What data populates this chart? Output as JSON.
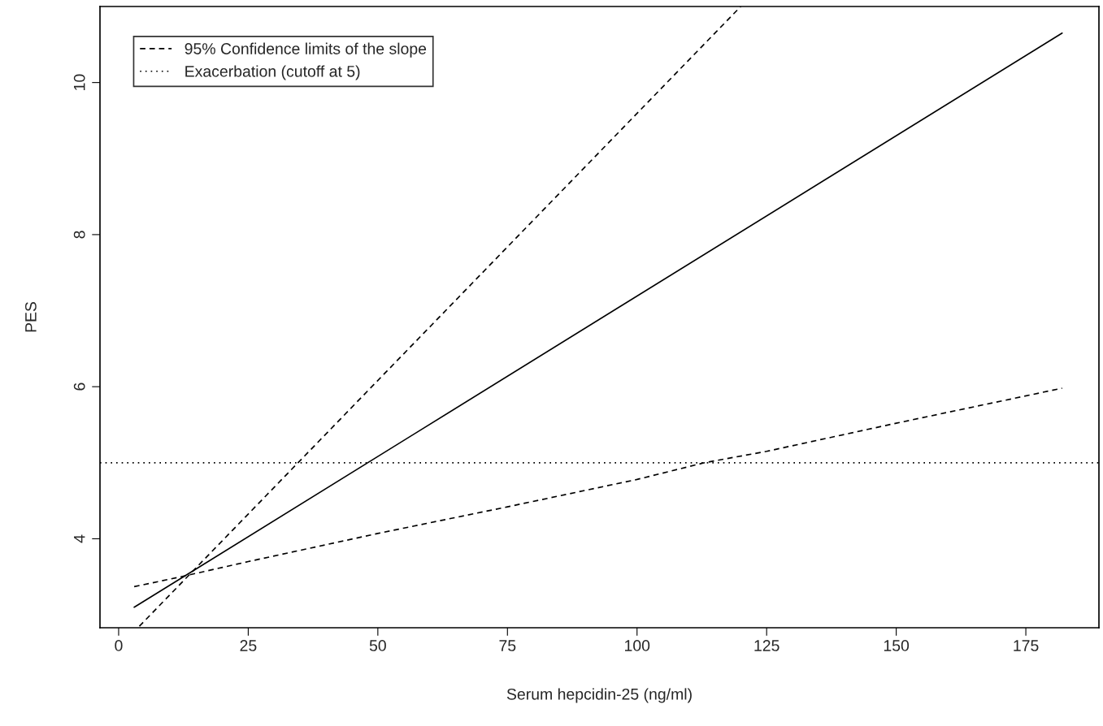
{
  "chart_data": {
    "type": "line",
    "xlabel": "Serum hepcidin-25 (ng/ml)",
    "ylabel": "PES",
    "xlim": [
      -3.6,
      189.1
    ],
    "ylim": [
      2.83,
      11.0
    ],
    "xticks": [
      0,
      25,
      50,
      75,
      100,
      125,
      150,
      175
    ],
    "yticks": [
      4,
      6,
      8,
      10
    ],
    "grid": false,
    "legend": "top left",
    "marker": "none",
    "series": [
      {
        "color": "#000000",
        "line_style": "solid",
        "x": [
          3,
          182
        ],
        "values": [
          3.1,
          10.65
        ]
      },
      {
        "name": "95% Confidence limits of the slope",
        "color": "#000000",
        "line_style": "dashed",
        "x": [
          4,
          120
        ],
        "values": [
          2.85,
          11.0
        ]
      },
      {
        "color": "#000000",
        "line_style": "dashed",
        "x": [
          3,
          12,
          25,
          50,
          75,
          100,
          113,
          125,
          150,
          182
        ],
        "values": [
          3.37,
          3.5,
          3.7,
          4.07,
          4.42,
          4.78,
          5.0,
          5.15,
          5.52,
          5.98
        ]
      }
    ],
    "ref_lines": [
      {
        "axis": "y",
        "value": 5,
        "label": "Exacerbation (cutoff at 5)",
        "line_style": "dotted",
        "color": "#000000"
      }
    ]
  }
}
